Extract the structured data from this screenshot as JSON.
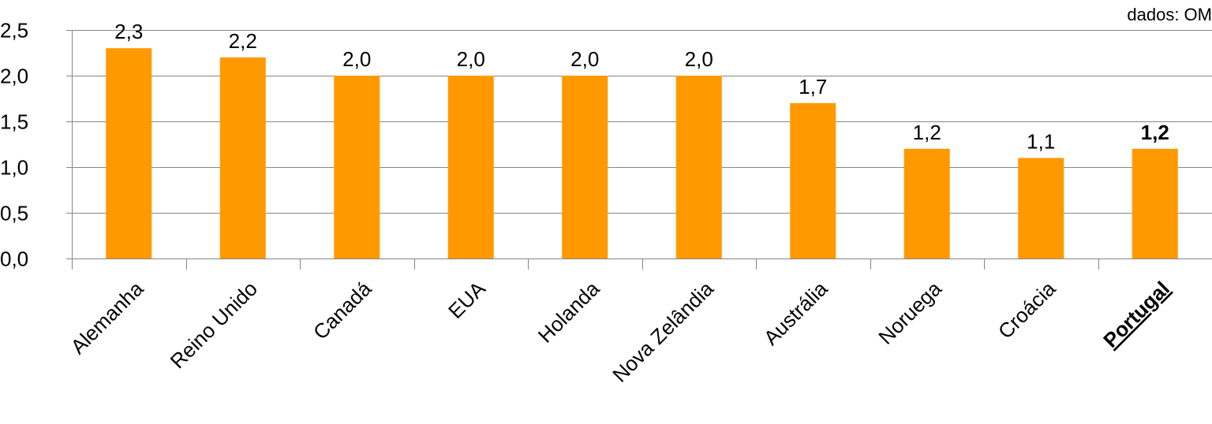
{
  "source_note": "dados: OM",
  "chart_data": {
    "type": "bar",
    "categories": [
      "Alemanha",
      "Reino Unido",
      "Canadá",
      "EUA",
      "Holanda",
      "Nova Zelândia",
      "Austrália",
      "Noruega",
      "Croácia",
      "Portugal"
    ],
    "values": [
      2.3,
      2.2,
      2.0,
      2.0,
      2.0,
      2.0,
      1.7,
      1.2,
      1.1,
      1.2
    ],
    "data_labels": [
      "2,3",
      "2,2",
      "2,0",
      "2,0",
      "2,0",
      "2,0",
      "1,7",
      "1,2",
      "1,1",
      "1,2"
    ],
    "highlight_category": "Portugal",
    "y_ticks": [
      {
        "value": 0.0,
        "label": "0,0"
      },
      {
        "value": 0.5,
        "label": "0,5"
      },
      {
        "value": 1.0,
        "label": "1,0"
      },
      {
        "value": 1.5,
        "label": "1,5"
      },
      {
        "value": 2.0,
        "label": "2,0"
      },
      {
        "value": 2.5,
        "label": "2,5"
      }
    ],
    "ylim": [
      0,
      2.5
    ],
    "grid": true,
    "legend": "none",
    "bar_color": "#FF9900",
    "gridline_color": "#868686",
    "title": "",
    "xlabel": "",
    "ylabel": ""
  }
}
